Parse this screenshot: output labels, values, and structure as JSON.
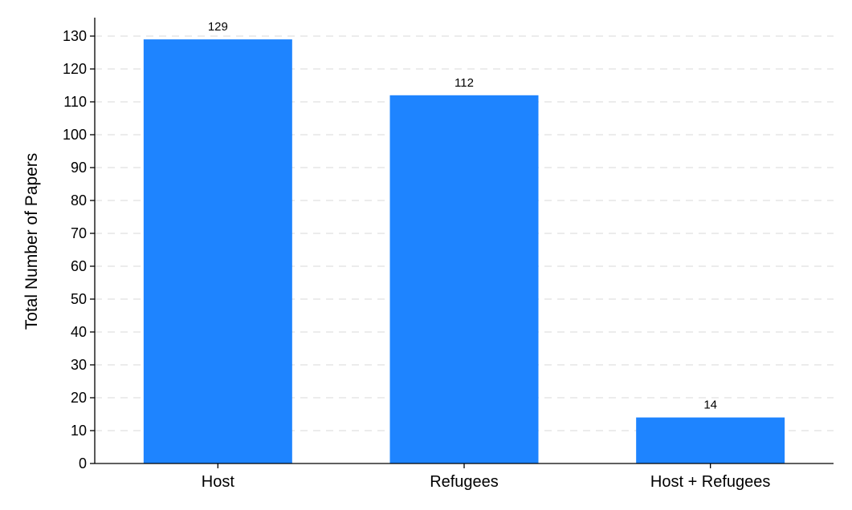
{
  "chart_data": {
    "type": "bar",
    "title": "",
    "xlabel": "",
    "ylabel": "Total Number of Papers",
    "categories": [
      "Host",
      "Refugees",
      "Host + Refugees"
    ],
    "values": [
      129,
      112,
      14
    ],
    "data_labels": [
      "129",
      "112",
      "14"
    ],
    "ylim": [
      0,
      130
    ],
    "yticks": [
      0,
      10,
      20,
      30,
      40,
      50,
      60,
      70,
      80,
      90,
      100,
      110,
      120,
      130
    ],
    "grid": true,
    "legend": "none",
    "bar_color": "#1e84ff"
  }
}
